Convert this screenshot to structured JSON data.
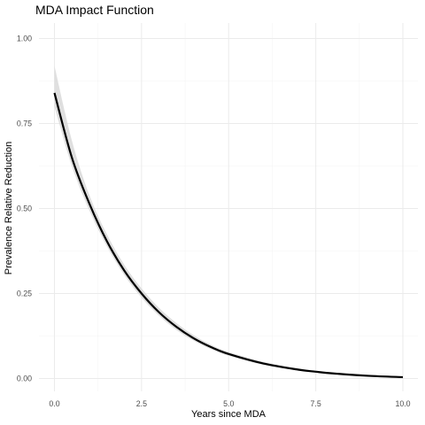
{
  "chart_data": {
    "type": "line",
    "title": "MDA Impact Function",
    "xlabel": "Years since MDA",
    "ylabel": "Prevalence Relative Reduction",
    "xlim": [
      0,
      10
    ],
    "ylim": [
      0,
      1
    ],
    "x_ticks": [
      0,
      2.5,
      5,
      7.5,
      10
    ],
    "x_tick_labels": [
      "0.0",
      "2.5",
      "5.0",
      "7.5",
      "10.0"
    ],
    "y_ticks": [
      0,
      0.25,
      0.5,
      0.75,
      1
    ],
    "y_tick_labels": [
      "0.00",
      "0.25",
      "0.50",
      "0.75",
      "1.00"
    ],
    "grid": true,
    "legend": "none",
    "series": [
      {
        "color": "#000000",
        "x": [
          0,
          0.5,
          1,
          1.5,
          2,
          2.5,
          3,
          3.5,
          4,
          4.5,
          5,
          6,
          7,
          7.5,
          8,
          9,
          10
        ],
        "values": [
          0.84,
          0.65,
          0.515,
          0.405,
          0.318,
          0.25,
          0.195,
          0.152,
          0.118,
          0.092,
          0.072,
          0.044,
          0.026,
          0.02,
          0.015,
          0.008,
          0.004
        ],
        "lower": [
          0.8,
          0.625,
          0.495,
          0.39,
          0.305,
          0.238,
          0.185,
          0.143,
          0.111,
          0.086,
          0.067,
          0.04,
          0.023,
          0.017,
          0.013,
          0.006,
          0.003
        ],
        "upper": [
          0.92,
          0.7,
          0.54,
          0.425,
          0.335,
          0.265,
          0.208,
          0.163,
          0.127,
          0.099,
          0.078,
          0.049,
          0.03,
          0.023,
          0.018,
          0.011,
          0.006
        ],
        "band_color": "#d9d9d9"
      }
    ]
  }
}
